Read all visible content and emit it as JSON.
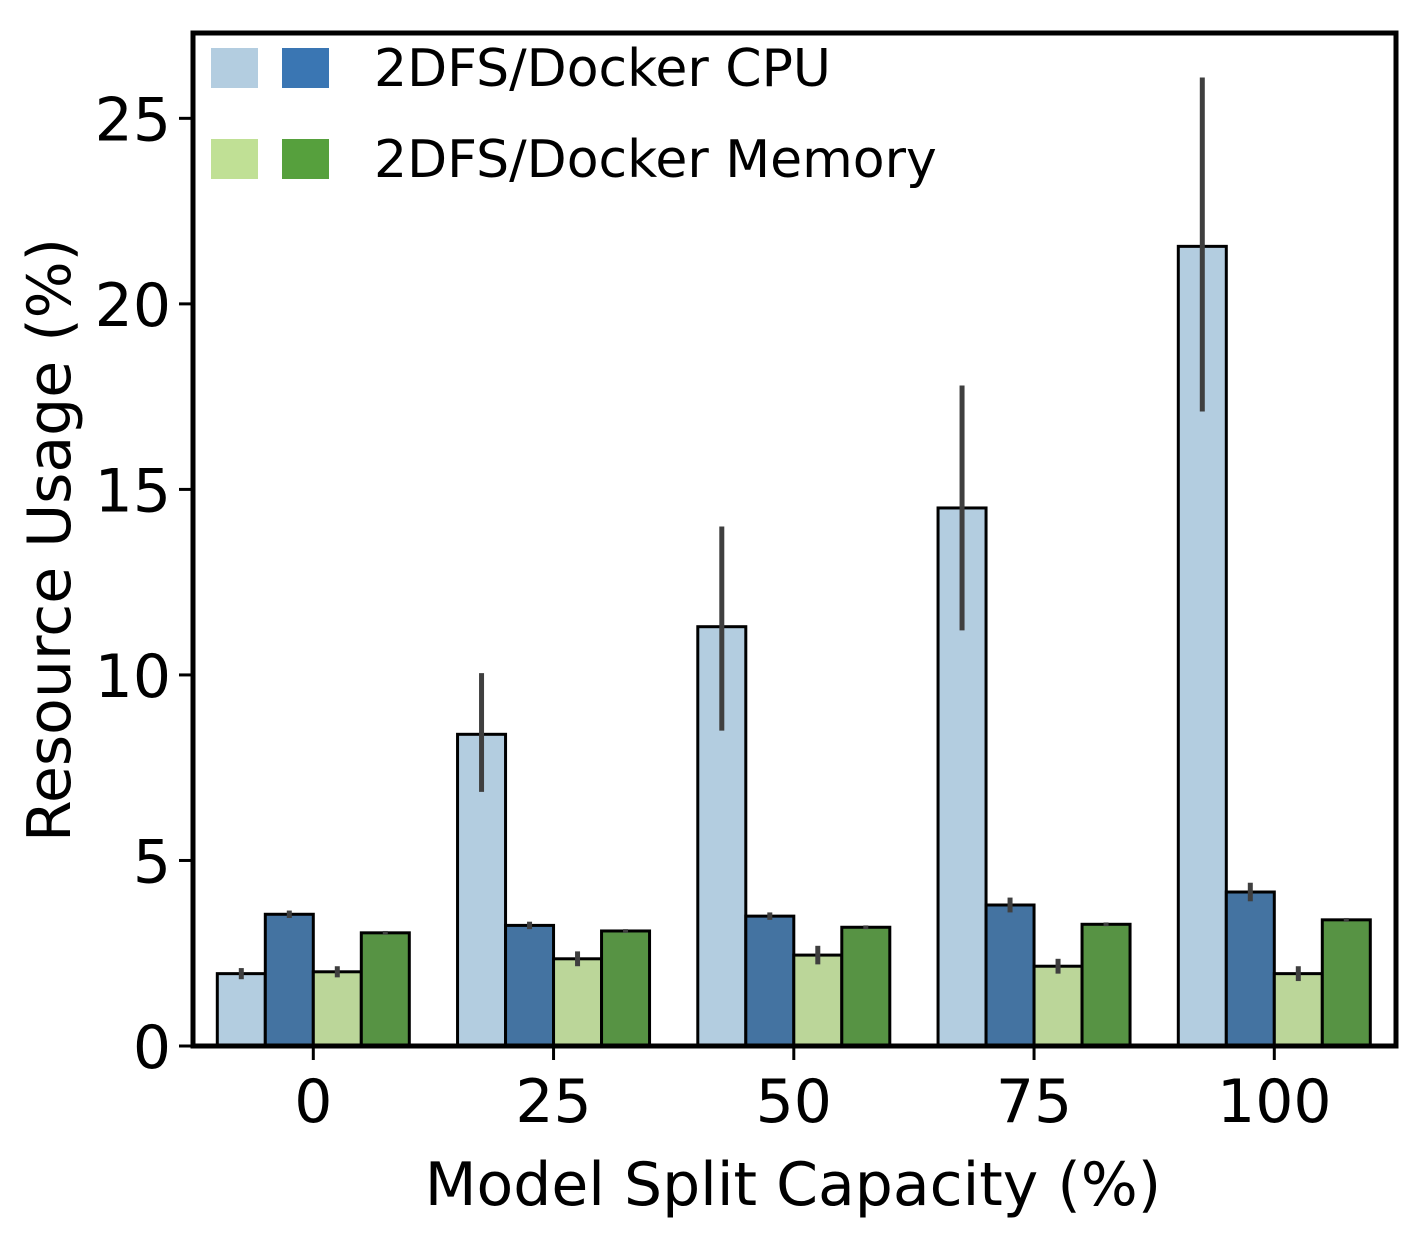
{
  "chart_data": {
    "type": "bar",
    "title": "",
    "xlabel": "Model Split Capacity (%)",
    "ylabel": "Resource Usage (%)",
    "categories": [
      "0",
      "25",
      "50",
      "75",
      "100"
    ],
    "ylim": [
      0,
      27.3
    ],
    "yticks": [
      0,
      5,
      10,
      15,
      20,
      25
    ],
    "grid": false,
    "legend_position": "top-left",
    "series": [
      {
        "key": "twodfs_cpu",
        "values": [
          1.95,
          8.4,
          11.3,
          14.5,
          21.55
        ],
        "err_low": [
          1.8,
          6.85,
          8.5,
          11.2,
          17.1
        ],
        "err_high": [
          2.1,
          10.05,
          14.0,
          17.8,
          26.1
        ],
        "color": "#b3cde0"
      },
      {
        "key": "docker_cpu",
        "values": [
          3.55,
          3.25,
          3.5,
          3.8,
          4.15
        ],
        "err_low": [
          3.45,
          3.15,
          3.4,
          3.6,
          3.9
        ],
        "err_high": [
          3.65,
          3.35,
          3.6,
          4.0,
          4.4
        ],
        "color": "#4473a1"
      },
      {
        "key": "twodfs_memory",
        "values": [
          2.0,
          2.35,
          2.45,
          2.15,
          1.95
        ],
        "err_low": [
          1.85,
          2.15,
          2.2,
          1.95,
          1.75
        ],
        "err_high": [
          2.15,
          2.55,
          2.7,
          2.35,
          2.15
        ],
        "color": "#bbd699"
      },
      {
        "key": "docker_memory",
        "values": [
          3.05,
          3.1,
          3.2,
          3.28,
          3.4
        ],
        "err_low": [
          3.0,
          3.05,
          3.15,
          3.23,
          3.35
        ],
        "err_high": [
          3.1,
          3.15,
          3.25,
          3.33,
          3.45
        ],
        "color": "#579344"
      }
    ],
    "legend": [
      {
        "label": "2DFS/Docker CPU",
        "swatch_colors": [
          "#b3cde0",
          "#3a76b3"
        ]
      },
      {
        "label": "2DFS/Docker Memory",
        "swatch_colors": [
          "#c0e095",
          "#56a03d"
        ]
      }
    ],
    "errorbar_color": "#3f3f3f"
  }
}
